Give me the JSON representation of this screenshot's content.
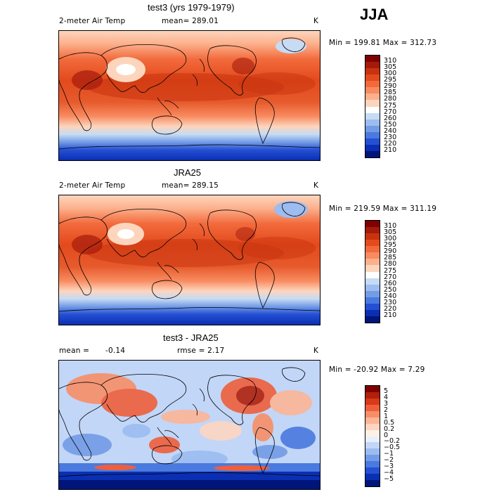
{
  "season": "JJA",
  "panels": [
    {
      "title": "test3 (yrs 1979-1979)",
      "variable": "2-meter Air Temp",
      "stat": "mean= 289.01",
      "stat2": "",
      "units": "K",
      "range": "Min = 199.81 Max = 312.73",
      "colorbar_labels": [
        "310",
        "305",
        "300",
        "295",
        "290",
        "285",
        "280",
        "275",
        "270",
        "260",
        "250",
        "240",
        "230",
        "220",
        "210"
      ],
      "colorbar_colors": [
        "#7f0000",
        "#a51b0b",
        "#c8330f",
        "#e34a1c",
        "#f26a3c",
        "#f88b60",
        "#fcb08c",
        "#fdd5bd",
        "#ffffff",
        "#c6dbf4",
        "#9dbcf0",
        "#739ce6",
        "#4a7adf",
        "#2550d4",
        "#0a2fb3",
        "#00157a"
      ]
    },
    {
      "title": "JRA25",
      "variable": "2-meter Air Temp",
      "stat": "mean= 289.15",
      "stat2": "",
      "units": "K",
      "range": "Min = 219.59 Max = 311.19",
      "colorbar_labels": [
        "310",
        "305",
        "300",
        "295",
        "290",
        "285",
        "280",
        "275",
        "270",
        "260",
        "250",
        "240",
        "230",
        "220",
        "210"
      ],
      "colorbar_colors": [
        "#7f0000",
        "#a51b0b",
        "#c8330f",
        "#e34a1c",
        "#f26a3c",
        "#f88b60",
        "#fcb08c",
        "#fdd5bd",
        "#ffffff",
        "#c6dbf4",
        "#9dbcf0",
        "#739ce6",
        "#4a7adf",
        "#2550d4",
        "#0a2fb3",
        "#00157a"
      ]
    },
    {
      "title": "test3 - JRA25",
      "variable": "mean =",
      "stat": "-0.14",
      "stat2": "rmse =   2.17",
      "units": "K",
      "range": "Min = -20.92 Max =    7.29",
      "colorbar_labels": [
        "5",
        "4",
        "3",
        "2",
        "1",
        "0.5",
        "0.2",
        "0",
        "−0.2",
        "−0.5",
        "−1",
        "−2",
        "−3",
        "−4",
        "−5"
      ],
      "colorbar_colors": [
        "#7f0000",
        "#b0200d",
        "#d8391a",
        "#ef5f3c",
        "#f88e68",
        "#fcb596",
        "#fdd5c2",
        "#fff0e6",
        "#e6f0ff",
        "#c2d6f7",
        "#9cbcf1",
        "#739ce6",
        "#4a7adf",
        "#2550d4",
        "#0a2fb3",
        "#00157a"
      ]
    }
  ]
}
